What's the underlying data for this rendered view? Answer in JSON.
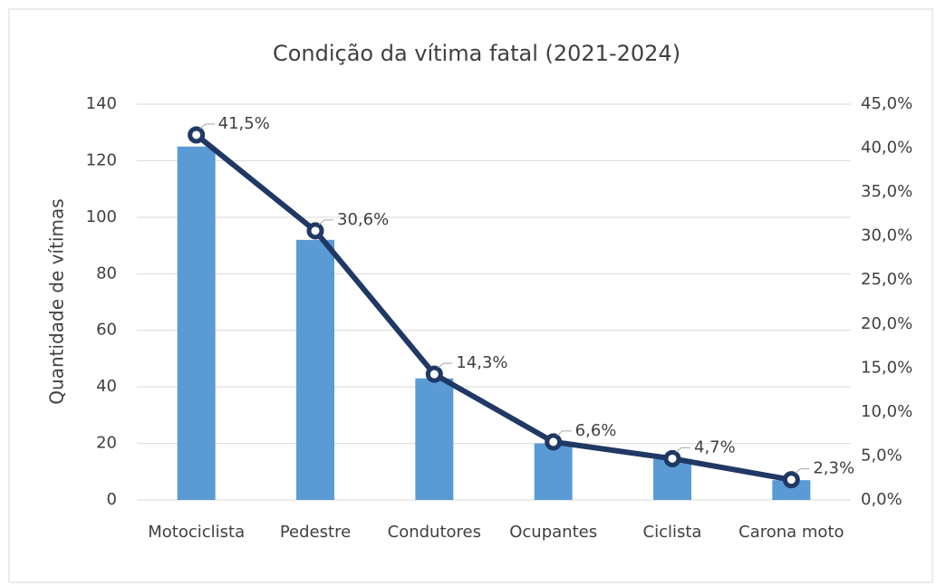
{
  "chart_data": {
    "type": "combo",
    "title": "Condição da vítima fatal (2021-2024)",
    "y_label": "Quantidade de vítimas",
    "categories": [
      "Motociclista",
      "Pedestre",
      "Condutores",
      "Ocupantes",
      "Ciclista",
      "Carona moto"
    ],
    "series": [
      {
        "type": "bar",
        "color": "#5b9bd5",
        "values": [
          125,
          92,
          43,
          20,
          14.5,
          7
        ]
      },
      {
        "type": "line",
        "axis": "y2",
        "color": "#203864",
        "values": [
          41.5,
          30.6,
          14.3,
          6.6,
          4.7,
          2.3
        ],
        "value_labels": [
          "41,5%",
          "30,6%",
          "14,3%",
          "6,6%",
          "4,7%",
          "2,3%"
        ]
      }
    ],
    "ylim": [
      0,
      140
    ],
    "yticks": [
      0,
      20,
      40,
      60,
      80,
      100,
      120,
      140
    ],
    "y2lim": [
      0,
      45
    ],
    "y2ticks": [
      {
        "value": 0,
        "label": "0,0%"
      },
      {
        "value": 5,
        "label": "5,0%"
      },
      {
        "value": 10,
        "label": "10,0%"
      },
      {
        "value": 15,
        "label": "15,0%"
      },
      {
        "value": 20,
        "label": "20,0%"
      },
      {
        "value": 25,
        "label": "25,0%"
      },
      {
        "value": 30,
        "label": "30,0%"
      },
      {
        "value": 35,
        "label": "35,0%"
      },
      {
        "value": 40,
        "label": "40,0%"
      },
      {
        "value": 45,
        "label": "45,0%"
      }
    ],
    "grid": true
  }
}
